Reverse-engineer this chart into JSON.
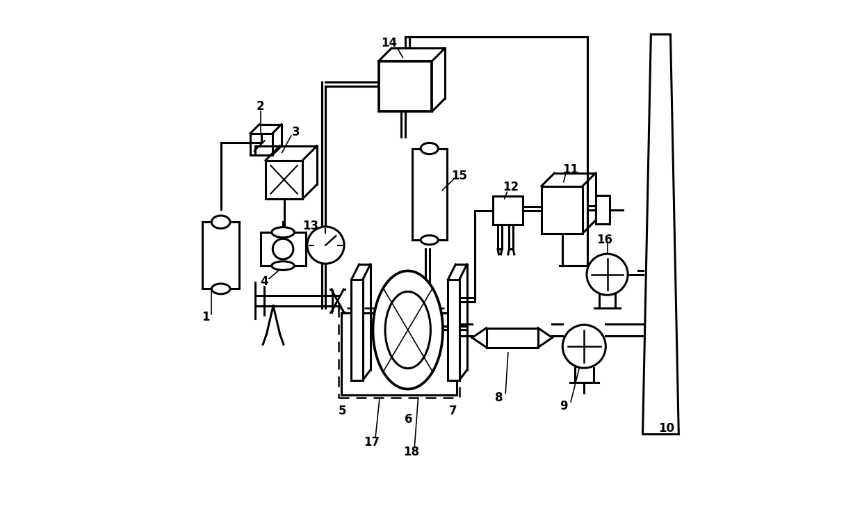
{
  "bg_color": "#ffffff",
  "line_color": "#000000",
  "line_width": 2.2,
  "fig_width": 12.4,
  "fig_height": 7.42
}
